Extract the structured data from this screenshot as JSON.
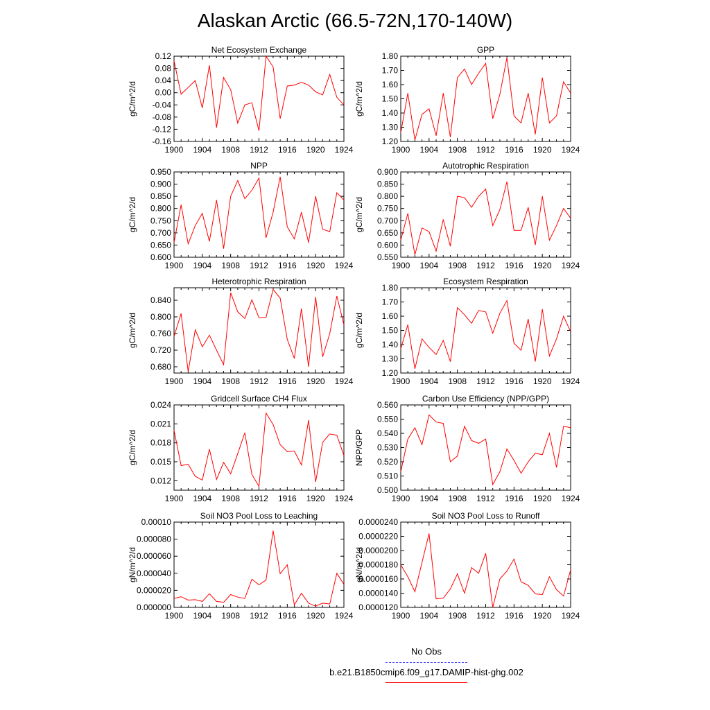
{
  "title": "Alaskan Arctic (66.5-72N,170-140W)",
  "colors": {
    "model": "#ff0000",
    "obs": "#4b4bff",
    "axis": "#000000"
  },
  "legend": [
    {
      "label": "No Obs",
      "style": "dashed",
      "color": "#4b4bff"
    },
    {
      "label": "b.e21.B1850cmip6.f09_g17.DAMIP-hist-ghg.002",
      "style": "solid",
      "color": "#ff0000"
    }
  ],
  "x": [
    1900,
    1901,
    1902,
    1903,
    1904,
    1905,
    1906,
    1907,
    1908,
    1909,
    1910,
    1911,
    1912,
    1913,
    1914,
    1915,
    1916,
    1917,
    1918,
    1919,
    1920,
    1921,
    1922,
    1923,
    1924
  ],
  "xticks": [
    "1900",
    "1904",
    "1908",
    "1912",
    "1916",
    "1920",
    "1924"
  ],
  "chart_data": [
    {
      "type": "line",
      "title": "Net Ecosystem Exchange",
      "ylabel": "gC/m^2/d",
      "ylim": [
        -0.16,
        0.12
      ],
      "yticks": [
        "-0.16",
        "-0.12",
        "-0.08",
        "-0.04",
        "0.00",
        "0.04",
        "0.08",
        "0.12"
      ],
      "values": [
        0.105,
        -0.005,
        0.017,
        0.04,
        -0.05,
        0.09,
        -0.115,
        0.05,
        0.01,
        -0.1,
        -0.04,
        -0.033,
        -0.125,
        0.12,
        0.085,
        -0.085,
        0.022,
        0.025,
        0.034,
        0.025,
        0.003,
        -0.007,
        0.06,
        -0.015,
        -0.04
      ]
    },
    {
      "type": "line",
      "title": "GPP",
      "ylabel": "gC/m^2/d",
      "ylim": [
        1.2,
        1.8
      ],
      "yticks": [
        "1.20",
        "1.30",
        "1.40",
        "1.50",
        "1.60",
        "1.70",
        "1.80"
      ],
      "values": [
        1.26,
        1.54,
        1.21,
        1.39,
        1.43,
        1.24,
        1.54,
        1.23,
        1.65,
        1.71,
        1.6,
        1.68,
        1.75,
        1.36,
        1.53,
        1.79,
        1.38,
        1.33,
        1.54,
        1.25,
        1.65,
        1.33,
        1.38,
        1.62,
        1.54
      ]
    },
    {
      "type": "line",
      "title": "NPP",
      "ylabel": "gC/m^2/d",
      "ylim": [
        0.6,
        0.95
      ],
      "yticks": [
        "0.600",
        "0.650",
        "0.700",
        "0.750",
        "0.800",
        "0.850",
        "0.900",
        "0.950"
      ],
      "values": [
        0.66,
        0.815,
        0.655,
        0.73,
        0.78,
        0.665,
        0.835,
        0.635,
        0.85,
        0.915,
        0.84,
        0.875,
        0.925,
        0.68,
        0.785,
        0.93,
        0.725,
        0.675,
        0.785,
        0.66,
        0.85,
        0.715,
        0.705,
        0.865,
        0.835
      ]
    },
    {
      "type": "line",
      "title": "Autotrophic Respiration",
      "ylabel": "gC/m^2/d",
      "ylim": [
        0.55,
        0.9
      ],
      "yticks": [
        "0.550",
        "0.600",
        "0.650",
        "0.700",
        "0.750",
        "0.800",
        "0.850",
        "0.900"
      ],
      "values": [
        0.62,
        0.73,
        0.56,
        0.67,
        0.655,
        0.575,
        0.705,
        0.595,
        0.8,
        0.795,
        0.755,
        0.8,
        0.83,
        0.68,
        0.745,
        0.86,
        0.66,
        0.66,
        0.755,
        0.6,
        0.8,
        0.62,
        0.68,
        0.75,
        0.71
      ]
    },
    {
      "type": "line",
      "title": "Heterotrophic Respiration",
      "ylabel": "gC/m^2/d",
      "ylim": [
        0.665,
        0.87
      ],
      "yticks": [
        "0.680",
        "0.720",
        "0.760",
        "0.800",
        "0.840"
      ],
      "values": [
        0.753,
        0.808,
        0.668,
        0.769,
        0.728,
        0.756,
        0.72,
        0.685,
        0.858,
        0.812,
        0.796,
        0.841,
        0.798,
        0.799,
        0.866,
        0.845,
        0.746,
        0.7,
        0.82,
        0.68,
        0.848,
        0.704,
        0.76,
        0.85,
        0.781
      ]
    },
    {
      "type": "line",
      "title": "Ecosystem Respiration",
      "ylabel": "gC/m^2/d",
      "ylim": [
        1.2,
        1.8
      ],
      "yticks": [
        "1.20",
        "1.30",
        "1.40",
        "1.50",
        "1.60",
        "1.70",
        "1.80"
      ],
      "values": [
        1.37,
        1.54,
        1.23,
        1.44,
        1.38,
        1.33,
        1.43,
        1.28,
        1.66,
        1.61,
        1.55,
        1.64,
        1.63,
        1.48,
        1.62,
        1.71,
        1.41,
        1.36,
        1.58,
        1.28,
        1.65,
        1.32,
        1.44,
        1.6,
        1.49
      ]
    },
    {
      "type": "line",
      "title": "Gridcell Surface CH4 Flux",
      "ylabel": "gC/m^2/d",
      "ylim": [
        0.0105,
        0.024
      ],
      "yticks": [
        "0.012",
        "0.015",
        "0.018",
        "0.021",
        "0.024"
      ],
      "values": [
        0.02,
        0.0144,
        0.0146,
        0.0127,
        0.0121,
        0.017,
        0.0122,
        0.0149,
        0.0131,
        0.0163,
        0.0196,
        0.013,
        0.0111,
        0.0227,
        0.0209,
        0.0177,
        0.0166,
        0.0167,
        0.0145,
        0.0216,
        0.0118,
        0.0181,
        0.0194,
        0.0192,
        0.016
      ]
    },
    {
      "type": "line",
      "title": "Carbon Use Efficiency (NPP/GPP)",
      "ylabel": "NPP/GPP",
      "ylim": [
        0.5,
        0.56
      ],
      "yticks": [
        "0.500",
        "0.510",
        "0.520",
        "0.530",
        "0.540",
        "0.550",
        "0.560"
      ],
      "values": [
        0.513,
        0.536,
        0.544,
        0.532,
        0.553,
        0.548,
        0.547,
        0.52,
        0.524,
        0.545,
        0.535,
        0.533,
        0.536,
        0.504,
        0.513,
        0.529,
        0.521,
        0.512,
        0.52,
        0.526,
        0.525,
        0.54,
        0.516,
        0.545,
        0.544
      ]
    },
    {
      "type": "line",
      "title": "Soil NO3 Pool Loss to Leaching",
      "ylabel": "gN/m^2/d",
      "ylim": [
        0,
        0.0001
      ],
      "yticks": [
        "0.000000",
        "0.000020",
        "0.000040",
        "0.000060",
        "0.000080",
        "0.00010"
      ],
      "values": [
        1.05e-05,
        1.25e-05,
        8.5e-06,
        9e-06,
        7e-06,
        1.6e-05,
        7e-06,
        6e-06,
        1.5e-05,
        1.2e-05,
        1.05e-05,
        3.3e-05,
        2.65e-05,
        3.2e-05,
        9e-05,
        3.95e-05,
        5e-05,
        3e-06,
        1.65e-05,
        5e-06,
        1.5e-06,
        5e-06,
        4e-06,
        4e-05,
        2.7e-05
      ]
    },
    {
      "type": "line",
      "title": "Soil NO3 Pool Loss to Runoff",
      "ylabel": "gN/m^2/d",
      "ylim": [
        1.2e-05,
        2.4e-05
      ],
      "yticks": [
        "0.0000120",
        "0.0000140",
        "0.0000160",
        "0.0000180",
        "0.0000200",
        "0.0000220",
        "0.0000240"
      ],
      "values": [
        1.8e-05,
        1.63e-05,
        1.42e-05,
        1.83e-05,
        2.24e-05,
        1.32e-05,
        1.33e-05,
        1.46e-05,
        1.67e-05,
        1.4e-05,
        1.76e-05,
        1.68e-05,
        1.96e-05,
        1.2e-05,
        1.6e-05,
        1.71e-05,
        1.88e-05,
        1.56e-05,
        1.51e-05,
        1.39e-05,
        1.38e-05,
        1.63e-05,
        1.45e-05,
        1.36e-05,
        1.73e-05
      ]
    }
  ]
}
